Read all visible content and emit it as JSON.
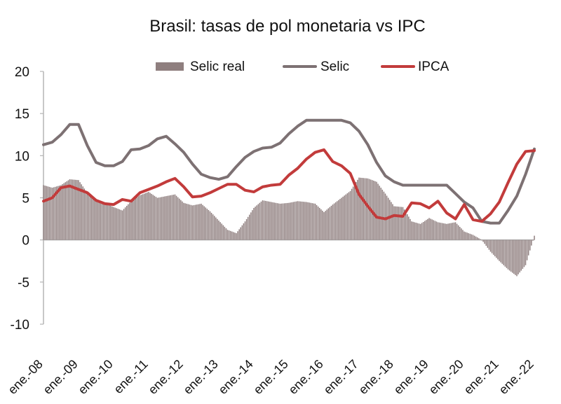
{
  "chart_data": {
    "type": "bar+line",
    "title": "Brasil: tasas de pol monetaria vs IPC",
    "xlabel": "",
    "ylabel": "",
    "ylim": [
      -10,
      20
    ],
    "yticks": [
      -10,
      -5,
      0,
      5,
      10,
      15,
      20
    ],
    "x_labels": [
      "ene.-08",
      "ene.-09",
      "ene.-10",
      "ene.-11",
      "ene.-12",
      "ene.-13",
      "ene.-14",
      "ene.-15",
      "ene.-16",
      "ene.-17",
      "ene.-18",
      "ene.-19",
      "ene.-20",
      "ene.-21",
      "ene.-22"
    ],
    "time_range": {
      "start_year": 2008.0,
      "end_year": 2022.0
    },
    "legend": {
      "position": "top-center"
    },
    "series": [
      {
        "name": "Selic real",
        "kind": "bar",
        "color": "#8f7f7f",
        "points": [
          [
            2008.0,
            6.5
          ],
          [
            2008.25,
            6.2
          ],
          [
            2008.5,
            6.5
          ],
          [
            2008.75,
            7.2
          ],
          [
            2009.0,
            7.1
          ],
          [
            2009.25,
            5.6
          ],
          [
            2009.5,
            4.6
          ],
          [
            2009.75,
            4.4
          ],
          [
            2010.0,
            3.9
          ],
          [
            2010.25,
            3.5
          ],
          [
            2010.5,
            4.6
          ],
          [
            2010.75,
            5.3
          ],
          [
            2011.0,
            5.7
          ],
          [
            2011.25,
            5.0
          ],
          [
            2011.5,
            5.2
          ],
          [
            2011.75,
            5.4
          ],
          [
            2012.0,
            4.4
          ],
          [
            2012.25,
            4.1
          ],
          [
            2012.5,
            4.3
          ],
          [
            2012.75,
            3.4
          ],
          [
            2013.0,
            2.3
          ],
          [
            2013.25,
            1.2
          ],
          [
            2013.5,
            0.8
          ],
          [
            2013.75,
            2.2
          ],
          [
            2014.0,
            3.8
          ],
          [
            2014.25,
            4.7
          ],
          [
            2014.5,
            4.5
          ],
          [
            2014.75,
            4.3
          ],
          [
            2015.0,
            4.4
          ],
          [
            2015.25,
            4.6
          ],
          [
            2015.5,
            4.5
          ],
          [
            2015.75,
            4.3
          ],
          [
            2016.0,
            3.3
          ],
          [
            2016.25,
            4.2
          ],
          [
            2016.5,
            5.0
          ],
          [
            2016.75,
            5.8
          ],
          [
            2017.0,
            7.4
          ],
          [
            2017.25,
            7.3
          ],
          [
            2017.5,
            6.9
          ],
          [
            2017.75,
            5.5
          ],
          [
            2018.0,
            4.0
          ],
          [
            2018.25,
            3.9
          ],
          [
            2018.5,
            2.2
          ],
          [
            2018.75,
            1.9
          ],
          [
            2019.0,
            2.6
          ],
          [
            2019.25,
            2.1
          ],
          [
            2019.5,
            1.9
          ],
          [
            2019.75,
            2.1
          ],
          [
            2020.0,
            1.0
          ],
          [
            2020.25,
            0.6
          ],
          [
            2020.5,
            0.0
          ],
          [
            2020.75,
            -1.4
          ],
          [
            2021.0,
            -2.5
          ],
          [
            2021.25,
            -3.5
          ],
          [
            2021.5,
            -4.3
          ],
          [
            2021.75,
            -3.0
          ],
          [
            2022.0,
            0.5
          ]
        ]
      },
      {
        "name": "Selic",
        "kind": "line",
        "color": "#7d7173",
        "points": [
          [
            2008.0,
            11.3
          ],
          [
            2008.25,
            11.6
          ],
          [
            2008.5,
            12.5
          ],
          [
            2008.75,
            13.7
          ],
          [
            2009.0,
            13.7
          ],
          [
            2009.25,
            11.2
          ],
          [
            2009.5,
            9.2
          ],
          [
            2009.75,
            8.8
          ],
          [
            2010.0,
            8.8
          ],
          [
            2010.25,
            9.3
          ],
          [
            2010.5,
            10.7
          ],
          [
            2010.75,
            10.8
          ],
          [
            2011.0,
            11.2
          ],
          [
            2011.25,
            12.0
          ],
          [
            2011.5,
            12.3
          ],
          [
            2011.75,
            11.4
          ],
          [
            2012.0,
            10.4
          ],
          [
            2012.25,
            9.0
          ],
          [
            2012.5,
            7.8
          ],
          [
            2012.75,
            7.4
          ],
          [
            2013.0,
            7.2
          ],
          [
            2013.25,
            7.5
          ],
          [
            2013.5,
            8.7
          ],
          [
            2013.75,
            9.8
          ],
          [
            2014.0,
            10.5
          ],
          [
            2014.25,
            10.9
          ],
          [
            2014.5,
            11.0
          ],
          [
            2014.75,
            11.5
          ],
          [
            2015.0,
            12.6
          ],
          [
            2015.25,
            13.5
          ],
          [
            2015.5,
            14.2
          ],
          [
            2015.75,
            14.2
          ],
          [
            2016.0,
            14.2
          ],
          [
            2016.25,
            14.2
          ],
          [
            2016.5,
            14.2
          ],
          [
            2016.75,
            13.9
          ],
          [
            2017.0,
            12.9
          ],
          [
            2017.25,
            11.3
          ],
          [
            2017.5,
            9.2
          ],
          [
            2017.75,
            7.6
          ],
          [
            2018.0,
            6.9
          ],
          [
            2018.25,
            6.5
          ],
          [
            2018.5,
            6.5
          ],
          [
            2018.75,
            6.5
          ],
          [
            2019.0,
            6.5
          ],
          [
            2019.25,
            6.5
          ],
          [
            2019.5,
            6.5
          ],
          [
            2019.75,
            5.5
          ],
          [
            2020.0,
            4.5
          ],
          [
            2020.25,
            3.8
          ],
          [
            2020.5,
            2.2
          ],
          [
            2020.75,
            2.0
          ],
          [
            2021.0,
            2.0
          ],
          [
            2021.25,
            3.5
          ],
          [
            2021.5,
            5.2
          ],
          [
            2021.75,
            7.8
          ],
          [
            2022.0,
            10.8
          ]
        ]
      },
      {
        "name": "IPCA",
        "kind": "line",
        "color": "#c23b3b",
        "points": [
          [
            2008.0,
            4.6
          ],
          [
            2008.25,
            5.0
          ],
          [
            2008.5,
            6.2
          ],
          [
            2008.75,
            6.4
          ],
          [
            2009.0,
            6.0
          ],
          [
            2009.25,
            5.6
          ],
          [
            2009.5,
            4.7
          ],
          [
            2009.75,
            4.3
          ],
          [
            2010.0,
            4.2
          ],
          [
            2010.25,
            4.8
          ],
          [
            2010.5,
            4.6
          ],
          [
            2010.75,
            5.6
          ],
          [
            2011.0,
            6.0
          ],
          [
            2011.25,
            6.4
          ],
          [
            2011.5,
            6.9
          ],
          [
            2011.75,
            7.3
          ],
          [
            2012.0,
            6.3
          ],
          [
            2012.25,
            5.1
          ],
          [
            2012.5,
            5.2
          ],
          [
            2012.75,
            5.6
          ],
          [
            2013.0,
            6.1
          ],
          [
            2013.25,
            6.6
          ],
          [
            2013.5,
            6.6
          ],
          [
            2013.75,
            5.9
          ],
          [
            2014.0,
            5.7
          ],
          [
            2014.25,
            6.3
          ],
          [
            2014.5,
            6.5
          ],
          [
            2014.75,
            6.6
          ],
          [
            2015.0,
            7.7
          ],
          [
            2015.25,
            8.5
          ],
          [
            2015.5,
            9.6
          ],
          [
            2015.75,
            10.4
          ],
          [
            2016.0,
            10.7
          ],
          [
            2016.25,
            9.3
          ],
          [
            2016.5,
            8.8
          ],
          [
            2016.75,
            7.9
          ],
          [
            2017.0,
            5.4
          ],
          [
            2017.25,
            4.0
          ],
          [
            2017.5,
            2.7
          ],
          [
            2017.75,
            2.5
          ],
          [
            2018.0,
            2.9
          ],
          [
            2018.25,
            2.8
          ],
          [
            2018.5,
            4.4
          ],
          [
            2018.75,
            4.3
          ],
          [
            2019.0,
            3.8
          ],
          [
            2019.25,
            4.6
          ],
          [
            2019.5,
            3.2
          ],
          [
            2019.75,
            2.5
          ],
          [
            2020.0,
            4.2
          ],
          [
            2020.25,
            2.4
          ],
          [
            2020.5,
            2.2
          ],
          [
            2020.75,
            3.1
          ],
          [
            2021.0,
            4.5
          ],
          [
            2021.25,
            6.8
          ],
          [
            2021.5,
            9.0
          ],
          [
            2021.75,
            10.5
          ],
          [
            2022.0,
            10.6
          ]
        ]
      }
    ]
  }
}
